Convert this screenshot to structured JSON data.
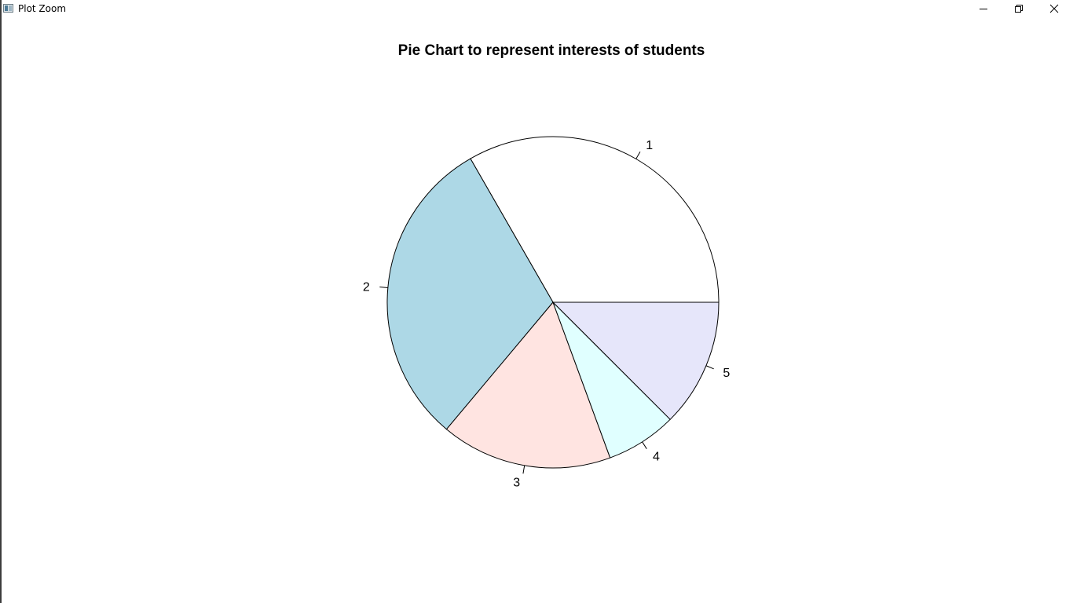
{
  "window": {
    "title": "Plot Zoom",
    "icon": "plot-zoom-app-icon",
    "controls": {
      "minimize_icon": "minimize-icon",
      "maximize_icon": "restore-icon",
      "close_icon": "close-icon"
    }
  },
  "chart_data": {
    "type": "pie",
    "title": "Pie Chart to represent interests of students",
    "labels": [
      "1",
      "2",
      "3",
      "4",
      "5"
    ],
    "values": [
      33.3,
      30.6,
      16.7,
      6.9,
      12.5
    ],
    "colors": [
      "#FFFFFF",
      "#ADD8E6",
      "#FFE4E1",
      "#E0FFFF",
      "#E6E6FA"
    ],
    "start_angle_deg": 0,
    "direction": "counterclockwise",
    "border_color": "#000000"
  }
}
